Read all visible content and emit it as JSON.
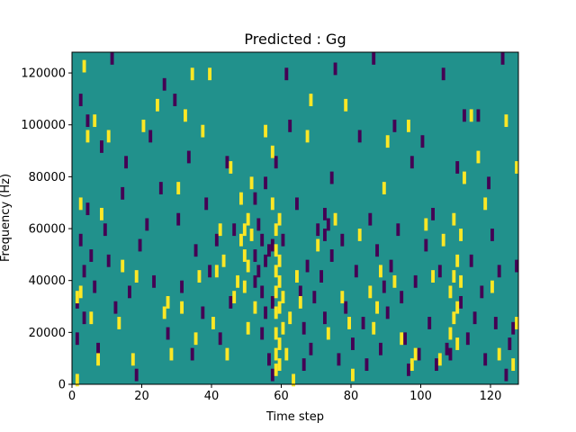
{
  "chart_data": {
    "type": "heatmap",
    "title": "Predicted : Gg",
    "xlabel": "Time step",
    "ylabel": "Frequency (Hz)",
    "xlim": [
      0,
      128
    ],
    "ylim": [
      0,
      128000
    ],
    "x_ticks": [
      0,
      20,
      40,
      60,
      80,
      100,
      120
    ],
    "y_ticks": [
      0,
      20000,
      40000,
      60000,
      80000,
      100000,
      120000
    ],
    "x_tick_labels": [
      "0",
      "20",
      "40",
      "60",
      "80",
      "100",
      "120"
    ],
    "y_tick_labels": [
      "0",
      "20000",
      "40000",
      "60000",
      "80000",
      "100000",
      "120000"
    ],
    "grid": false,
    "colormap": "viridis",
    "levels": {
      "low": "#440154",
      "mid": "#21918c",
      "high": "#fde725"
    },
    "background_level": "mid",
    "high_cells": [
      {
        "x": 1,
        "y": 2000
      },
      {
        "x": 2,
        "y": 36000
      },
      {
        "x": 1,
        "y": 34000
      },
      {
        "x": 2,
        "y": 70000
      },
      {
        "x": 3,
        "y": 123000
      },
      {
        "x": 4,
        "y": 96000
      },
      {
        "x": 5,
        "y": 26000
      },
      {
        "x": 6,
        "y": 102000
      },
      {
        "x": 7,
        "y": 10000
      },
      {
        "x": 8,
        "y": 66000
      },
      {
        "x": 10,
        "y": 96000
      },
      {
        "x": 13,
        "y": 24000
      },
      {
        "x": 14,
        "y": 46000
      },
      {
        "x": 17,
        "y": 10000
      },
      {
        "x": 18,
        "y": 42000
      },
      {
        "x": 20,
        "y": 100000
      },
      {
        "x": 24,
        "y": 108000
      },
      {
        "x": 26,
        "y": 28000
      },
      {
        "x": 27,
        "y": 32000
      },
      {
        "x": 28,
        "y": 12000
      },
      {
        "x": 30,
        "y": 76000
      },
      {
        "x": 31,
        "y": 30000
      },
      {
        "x": 32,
        "y": 104000
      },
      {
        "x": 34,
        "y": 120000
      },
      {
        "x": 35,
        "y": 18000
      },
      {
        "x": 36,
        "y": 42000
      },
      {
        "x": 37,
        "y": 98000
      },
      {
        "x": 39,
        "y": 120000
      },
      {
        "x": 40,
        "y": 24000
      },
      {
        "x": 41,
        "y": 44000
      },
      {
        "x": 42,
        "y": 60000
      },
      {
        "x": 43,
        "y": 48000
      },
      {
        "x": 44,
        "y": 12000
      },
      {
        "x": 45,
        "y": 84000
      },
      {
        "x": 46,
        "y": 34000
      },
      {
        "x": 47,
        "y": 40000
      },
      {
        "x": 48,
        "y": 56000
      },
      {
        "x": 48,
        "y": 72000
      },
      {
        "x": 49,
        "y": 38000
      },
      {
        "x": 49,
        "y": 50000
      },
      {
        "x": 49,
        "y": 60000
      },
      {
        "x": 50,
        "y": 64000
      },
      {
        "x": 50,
        "y": 46000
      },
      {
        "x": 50,
        "y": 22000
      },
      {
        "x": 51,
        "y": 78000
      },
      {
        "x": 51,
        "y": 58000
      },
      {
        "x": 52,
        "y": 30000
      },
      {
        "x": 55,
        "y": 98000
      },
      {
        "x": 57,
        "y": 90000
      },
      {
        "x": 57,
        "y": 70000
      },
      {
        "x": 58,
        "y": 60000
      },
      {
        "x": 58,
        "y": 52000
      },
      {
        "x": 58,
        "y": 44000
      },
      {
        "x": 58,
        "y": 36000
      },
      {
        "x": 58,
        "y": 28000
      },
      {
        "x": 58,
        "y": 20000
      },
      {
        "x": 58,
        "y": 12000
      },
      {
        "x": 58,
        "y": 6000
      },
      {
        "x": 59,
        "y": 64000
      },
      {
        "x": 59,
        "y": 48000
      },
      {
        "x": 59,
        "y": 40000
      },
      {
        "x": 59,
        "y": 30000
      },
      {
        "x": 59,
        "y": 16000
      },
      {
        "x": 59,
        "y": 8000
      },
      {
        "x": 60,
        "y": 34000
      },
      {
        "x": 60,
        "y": 22000
      },
      {
        "x": 61,
        "y": 12000
      },
      {
        "x": 62,
        "y": 26000
      },
      {
        "x": 63,
        "y": 2000
      },
      {
        "x": 64,
        "y": 42000
      },
      {
        "x": 65,
        "y": 32000
      },
      {
        "x": 67,
        "y": 96000
      },
      {
        "x": 68,
        "y": 110000
      },
      {
        "x": 70,
        "y": 54000
      },
      {
        "x": 73,
        "y": 20000
      },
      {
        "x": 75,
        "y": 64000
      },
      {
        "x": 77,
        "y": 34000
      },
      {
        "x": 78,
        "y": 108000
      },
      {
        "x": 79,
        "y": 24000
      },
      {
        "x": 80,
        "y": 4000
      },
      {
        "x": 82,
        "y": 58000
      },
      {
        "x": 85,
        "y": 36000
      },
      {
        "x": 86,
        "y": 22000
      },
      {
        "x": 87,
        "y": 30000
      },
      {
        "x": 88,
        "y": 44000
      },
      {
        "x": 89,
        "y": 76000
      },
      {
        "x": 90,
        "y": 94000
      },
      {
        "x": 92,
        "y": 40000
      },
      {
        "x": 94,
        "y": 18000
      },
      {
        "x": 96,
        "y": 100000
      },
      {
        "x": 97,
        "y": 8000
      },
      {
        "x": 98,
        "y": 12000
      },
      {
        "x": 101,
        "y": 62000
      },
      {
        "x": 103,
        "y": 42000
      },
      {
        "x": 105,
        "y": 10000
      },
      {
        "x": 106,
        "y": 56000
      },
      {
        "x": 108,
        "y": 36000
      },
      {
        "x": 108,
        "y": 20000
      },
      {
        "x": 109,
        "y": 64000
      },
      {
        "x": 109,
        "y": 42000
      },
      {
        "x": 109,
        "y": 26000
      },
      {
        "x": 110,
        "y": 48000
      },
      {
        "x": 110,
        "y": 30000
      },
      {
        "x": 110,
        "y": 16000
      },
      {
        "x": 111,
        "y": 58000
      },
      {
        "x": 111,
        "y": 40000
      },
      {
        "x": 112,
        "y": 80000
      },
      {
        "x": 114,
        "y": 104000
      },
      {
        "x": 116,
        "y": 88000
      },
      {
        "x": 118,
        "y": 70000
      },
      {
        "x": 120,
        "y": 38000
      },
      {
        "x": 122,
        "y": 12000
      },
      {
        "x": 124,
        "y": 102000
      },
      {
        "x": 126,
        "y": 8000
      },
      {
        "x": 127,
        "y": 24000
      },
      {
        "x": 127,
        "y": 84000
      }
    ],
    "low_cells": [
      {
        "x": 1,
        "y": 32000
      },
      {
        "x": 1,
        "y": 18000
      },
      {
        "x": 2,
        "y": 110000
      },
      {
        "x": 2,
        "y": 56000
      },
      {
        "x": 3,
        "y": 44000
      },
      {
        "x": 3,
        "y": 26000
      },
      {
        "x": 4,
        "y": 102000
      },
      {
        "x": 4,
        "y": 68000
      },
      {
        "x": 5,
        "y": 50000
      },
      {
        "x": 6,
        "y": 38000
      },
      {
        "x": 7,
        "y": 14000
      },
      {
        "x": 8,
        "y": 92000
      },
      {
        "x": 9,
        "y": 60000
      },
      {
        "x": 10,
        "y": 48000
      },
      {
        "x": 11,
        "y": 126000
      },
      {
        "x": 12,
        "y": 30000
      },
      {
        "x": 14,
        "y": 74000
      },
      {
        "x": 15,
        "y": 86000
      },
      {
        "x": 16,
        "y": 36000
      },
      {
        "x": 18,
        "y": 4000
      },
      {
        "x": 19,
        "y": 54000
      },
      {
        "x": 21,
        "y": 62000
      },
      {
        "x": 22,
        "y": 96000
      },
      {
        "x": 23,
        "y": 40000
      },
      {
        "x": 25,
        "y": 76000
      },
      {
        "x": 26,
        "y": 116000
      },
      {
        "x": 27,
        "y": 20000
      },
      {
        "x": 29,
        "y": 110000
      },
      {
        "x": 30,
        "y": 64000
      },
      {
        "x": 31,
        "y": 38000
      },
      {
        "x": 33,
        "y": 88000
      },
      {
        "x": 34,
        "y": 12000
      },
      {
        "x": 35,
        "y": 52000
      },
      {
        "x": 37,
        "y": 28000
      },
      {
        "x": 38,
        "y": 70000
      },
      {
        "x": 39,
        "y": 44000
      },
      {
        "x": 41,
        "y": 56000
      },
      {
        "x": 42,
        "y": 18000
      },
      {
        "x": 44,
        "y": 86000
      },
      {
        "x": 45,
        "y": 32000
      },
      {
        "x": 46,
        "y": 60000
      },
      {
        "x": 52,
        "y": 72000
      },
      {
        "x": 52,
        "y": 50000
      },
      {
        "x": 52,
        "y": 40000
      },
      {
        "x": 53,
        "y": 62000
      },
      {
        "x": 53,
        "y": 44000
      },
      {
        "x": 54,
        "y": 56000
      },
      {
        "x": 54,
        "y": 36000
      },
      {
        "x": 54,
        "y": 20000
      },
      {
        "x": 55,
        "y": 48000
      },
      {
        "x": 55,
        "y": 28000
      },
      {
        "x": 55,
        "y": 78000
      },
      {
        "x": 56,
        "y": 52000
      },
      {
        "x": 56,
        "y": 10000
      },
      {
        "x": 57,
        "y": 54000
      },
      {
        "x": 57,
        "y": 32000
      },
      {
        "x": 57,
        "y": 4000
      },
      {
        "x": 58,
        "y": 86000
      },
      {
        "x": 60,
        "y": 56000
      },
      {
        "x": 61,
        "y": 120000
      },
      {
        "x": 62,
        "y": 100000
      },
      {
        "x": 64,
        "y": 70000
      },
      {
        "x": 65,
        "y": 36000
      },
      {
        "x": 66,
        "y": 22000
      },
      {
        "x": 66,
        "y": 8000
      },
      {
        "x": 67,
        "y": 46000
      },
      {
        "x": 68,
        "y": 14000
      },
      {
        "x": 69,
        "y": 34000
      },
      {
        "x": 70,
        "y": 60000
      },
      {
        "x": 71,
        "y": 42000
      },
      {
        "x": 72,
        "y": 66000
      },
      {
        "x": 72,
        "y": 58000
      },
      {
        "x": 72,
        "y": 26000
      },
      {
        "x": 73,
        "y": 62000
      },
      {
        "x": 74,
        "y": 80000
      },
      {
        "x": 74,
        "y": 50000
      },
      {
        "x": 75,
        "y": 122000
      },
      {
        "x": 76,
        "y": 10000
      },
      {
        "x": 77,
        "y": 56000
      },
      {
        "x": 78,
        "y": 30000
      },
      {
        "x": 80,
        "y": 16000
      },
      {
        "x": 81,
        "y": 44000
      },
      {
        "x": 82,
        "y": 96000
      },
      {
        "x": 83,
        "y": 24000
      },
      {
        "x": 84,
        "y": 8000
      },
      {
        "x": 85,
        "y": 64000
      },
      {
        "x": 86,
        "y": 126000
      },
      {
        "x": 87,
        "y": 52000
      },
      {
        "x": 88,
        "y": 14000
      },
      {
        "x": 89,
        "y": 38000
      },
      {
        "x": 90,
        "y": 28000
      },
      {
        "x": 91,
        "y": 46000
      },
      {
        "x": 92,
        "y": 100000
      },
      {
        "x": 93,
        "y": 60000
      },
      {
        "x": 94,
        "y": 34000
      },
      {
        "x": 95,
        "y": 18000
      },
      {
        "x": 96,
        "y": 6000
      },
      {
        "x": 97,
        "y": 86000
      },
      {
        "x": 98,
        "y": 40000
      },
      {
        "x": 99,
        "y": 12000
      },
      {
        "x": 100,
        "y": 94000
      },
      {
        "x": 101,
        "y": 54000
      },
      {
        "x": 102,
        "y": 24000
      },
      {
        "x": 103,
        "y": 66000
      },
      {
        "x": 104,
        "y": 8000
      },
      {
        "x": 105,
        "y": 44000
      },
      {
        "x": 106,
        "y": 120000
      },
      {
        "x": 107,
        "y": 14000
      },
      {
        "x": 108,
        "y": 12000
      },
      {
        "x": 110,
        "y": 84000
      },
      {
        "x": 111,
        "y": 32000
      },
      {
        "x": 112,
        "y": 104000
      },
      {
        "x": 113,
        "y": 18000
      },
      {
        "x": 114,
        "y": 48000
      },
      {
        "x": 115,
        "y": 26000
      },
      {
        "x": 116,
        "y": 104000
      },
      {
        "x": 117,
        "y": 36000
      },
      {
        "x": 118,
        "y": 10000
      },
      {
        "x": 119,
        "y": 78000
      },
      {
        "x": 120,
        "y": 58000
      },
      {
        "x": 121,
        "y": 24000
      },
      {
        "x": 122,
        "y": 44000
      },
      {
        "x": 123,
        "y": 126000
      },
      {
        "x": 124,
        "y": 4000
      },
      {
        "x": 125,
        "y": 16000
      },
      {
        "x": 126,
        "y": 22000
      },
      {
        "x": 127,
        "y": 46000
      }
    ]
  }
}
